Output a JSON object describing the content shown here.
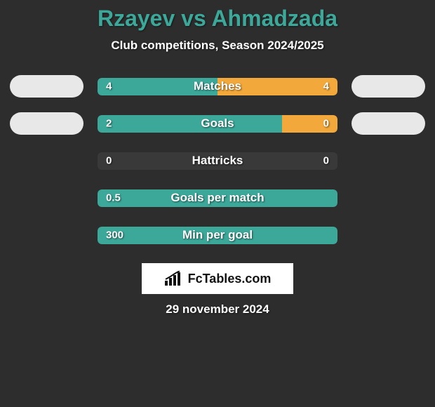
{
  "title": "Rzayev vs Ahmadzada",
  "subtitle": "Club competitions, Season 2024/2025",
  "date": "29 november 2024",
  "brand": {
    "text": "FcTables.com"
  },
  "colors": {
    "background": "#2d2d2d",
    "title": "#3ca89a",
    "text": "#ffffff",
    "left_bar": "#3ca89a",
    "right_bar": "#f2a83a",
    "bar_track": "rgba(255,255,255,0.06)",
    "oval": "#e8e8e8",
    "brand_bg": "#ffffff",
    "brand_text": "#111111"
  },
  "stats": [
    {
      "label": "Matches",
      "left_value": "4",
      "right_value": "4",
      "left_width_pct": 50,
      "right_width_pct": 50,
      "show_ovals": true
    },
    {
      "label": "Goals",
      "left_value": "2",
      "right_value": "0",
      "left_width_pct": 77,
      "right_width_pct": 23,
      "show_ovals": true
    },
    {
      "label": "Hattricks",
      "left_value": "0",
      "right_value": "0",
      "left_width_pct": 0,
      "right_width_pct": 0,
      "show_ovals": false
    },
    {
      "label": "Goals per match",
      "left_value": "0.5",
      "right_value": "",
      "left_width_pct": 100,
      "right_width_pct": 0,
      "show_ovals": false
    },
    {
      "label": "Min per goal",
      "left_value": "300",
      "right_value": "",
      "left_width_pct": 100,
      "right_width_pct": 0,
      "show_ovals": false
    }
  ]
}
